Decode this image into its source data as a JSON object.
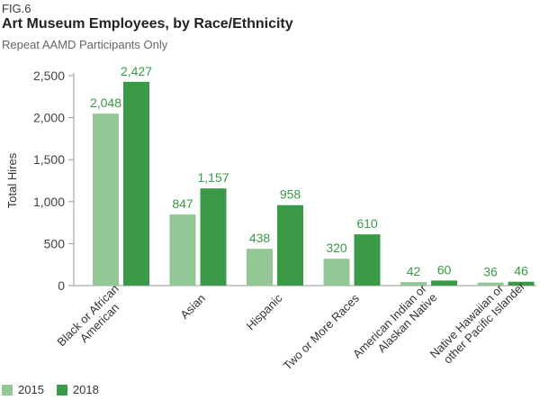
{
  "figure_label": "FIG.6",
  "title": "Art Museum Employees, by Race/Ethnicity",
  "subtitle": "Repeat AAMD Participants Only",
  "colors": {
    "s2015": "#93c795",
    "s2018": "#3a9a48",
    "label": "#3a9a48",
    "axis": "#999999",
    "text": "#333333"
  },
  "chart_data": {
    "type": "bar",
    "title": "Art Museum Employees, by Race/Ethnicity",
    "subtitle": "Repeat AAMD Participants Only",
    "xlabel": "",
    "ylabel": "Total Hires",
    "ylim": [
      0,
      2500
    ],
    "yticks": [
      0,
      500,
      1000,
      1500,
      2000,
      2500
    ],
    "ytick_labels": [
      "0",
      "500",
      "1,000",
      "1,500",
      "2,000",
      "2,500"
    ],
    "grid": false,
    "legend_position": "bottom-left",
    "categories": [
      [
        "Black or African",
        "American"
      ],
      [
        "Asian"
      ],
      [
        "Hispanic"
      ],
      [
        "Two or More Races"
      ],
      [
        "American Indian or",
        "Alaskan Native"
      ],
      [
        "Native Hawaiian or",
        "other Pacific Islander"
      ]
    ],
    "series": [
      {
        "name": "2015",
        "values": [
          2048,
          847,
          438,
          320,
          42,
          36
        ],
        "labels": [
          "2,048",
          "847",
          "438",
          "320",
          "42",
          "36"
        ]
      },
      {
        "name": "2018",
        "values": [
          2427,
          1157,
          958,
          610,
          60,
          46
        ],
        "labels": [
          "2,427",
          "1,157",
          "958",
          "610",
          "60",
          "46"
        ]
      }
    ]
  }
}
